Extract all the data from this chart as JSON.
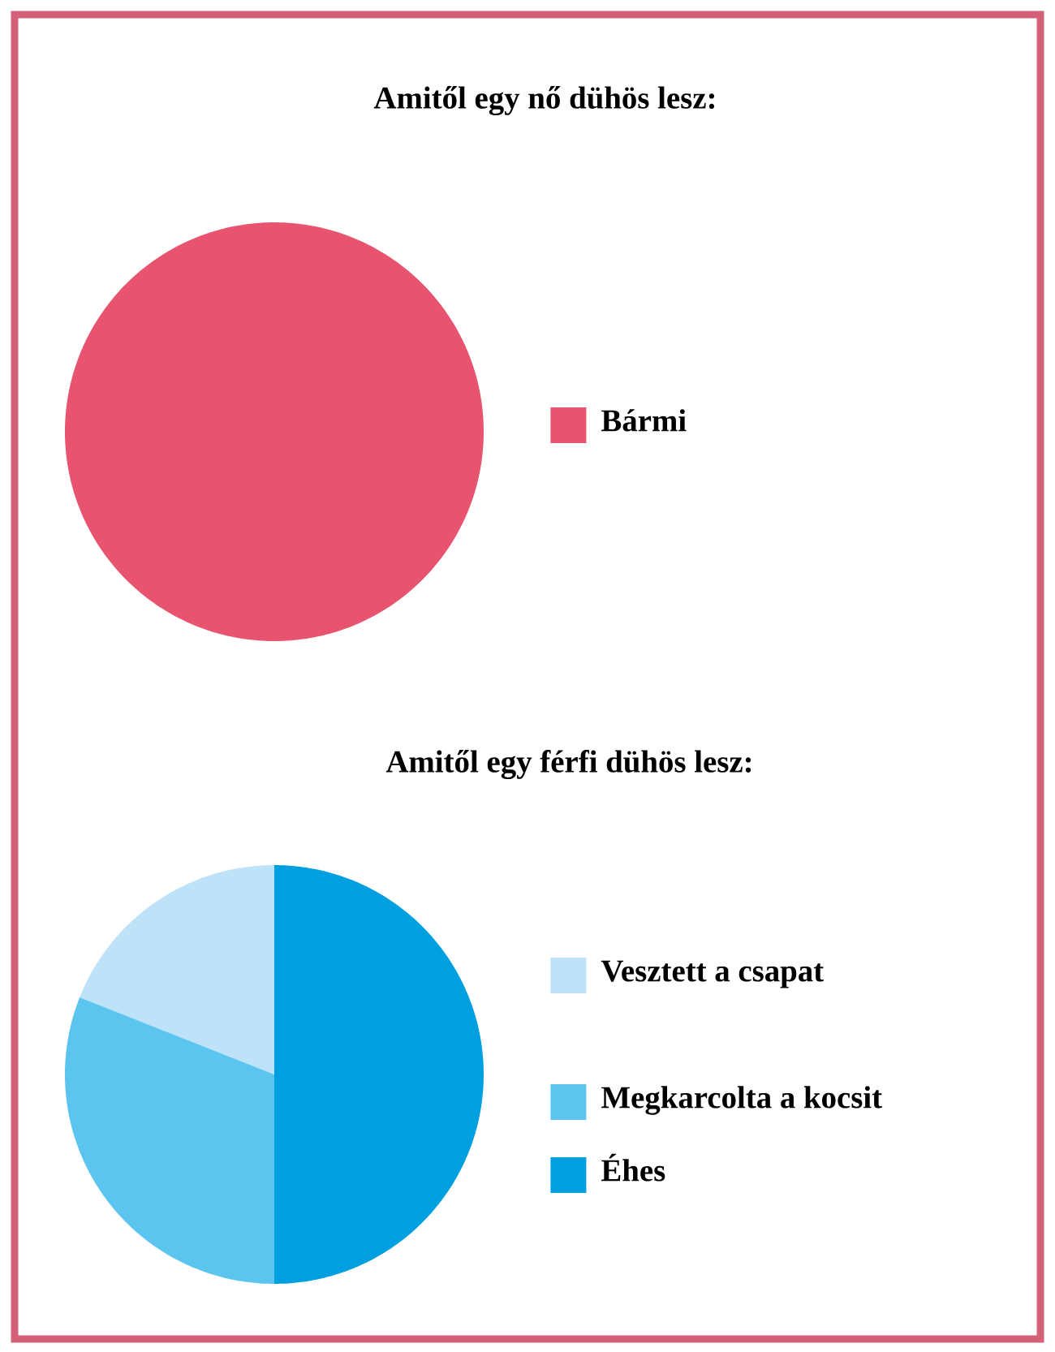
{
  "chart_data": [
    {
      "type": "pie",
      "title": "Amitől egy nő dühös lesz:",
      "categories": [
        "Bármi"
      ],
      "values": [
        100
      ],
      "colors": [
        "#e8536f"
      ],
      "legend": "right"
    },
    {
      "type": "pie",
      "title": "Amitől egy férfi dühös lesz:",
      "categories": [
        "Vesztett a csapat",
        "Megkarcolta a kocsit",
        "Éhes"
      ],
      "values": [
        19,
        31,
        50
      ],
      "colors": [
        "#bee3f8",
        "#5bc4ef",
        "#009fdf"
      ],
      "legend": "right"
    }
  ]
}
